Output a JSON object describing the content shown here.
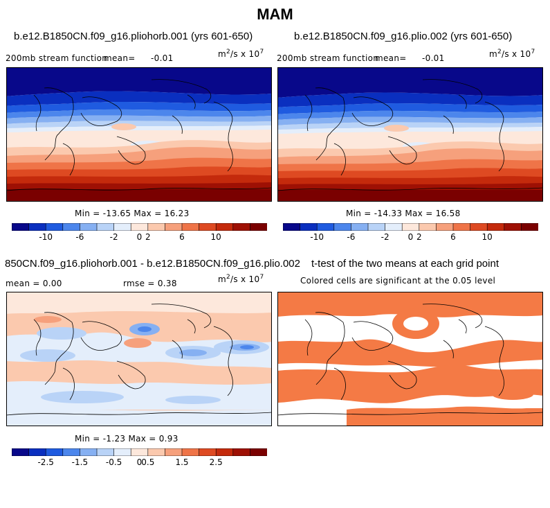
{
  "title": "MAM",
  "panels": [
    {
      "id": "p1",
      "case_title": "b.e12.B1850CN.f09_g16.pliohorb.001 (yrs 601-650)",
      "left_label": "200mb stream function",
      "mean_label": "mean=",
      "mean_value": "-0.01",
      "units": "m",
      "units_sup": "2",
      "units_rest": "/s x 10",
      "units_exp": "7",
      "min_max": "Min = -13.65 Max = 16.23"
    },
    {
      "id": "p2",
      "case_title": "b.e12.B1850CN.f09_g16.plio.002 (yrs 601-650)",
      "left_label": "200mb stream function",
      "mean_label": "mean=",
      "mean_value": "-0.01",
      "units": "m",
      "units_sup": "2",
      "units_rest": "/s x 10",
      "units_exp": "7",
      "min_max": "Min = -14.33 Max = 16.58"
    },
    {
      "id": "p3",
      "case_title": "850CN.f09_g16.pliohorb.001 - b.e12.B1850CN.f09_g16.plio.002",
      "mean_text": "mean =  0.00",
      "rmse_text": "rmse =  0.38",
      "units": "m",
      "units_sup": "2",
      "units_rest": "/s x 10",
      "units_exp": "7",
      "min_max": "Min = -1.23 Max = 0.93"
    },
    {
      "id": "p4",
      "case_title": "t-test of the two means at each grid point",
      "subtitle": "Colored cells are significant at the 0.05 level"
    }
  ],
  "colorbar_full": {
    "colors": [
      "#08088a",
      "#0a2fbf",
      "#1f5be0",
      "#4c86ec",
      "#86b0f2",
      "#b9d3f7",
      "#e4eefb",
      "#fde8dc",
      "#fbc9ae",
      "#f6a07c",
      "#ef7448",
      "#de4a22",
      "#c42a0c",
      "#9e1004",
      "#7a0000"
    ],
    "tick_labels": [
      "-10",
      "-6",
      "-2",
      "0",
      "2",
      "6",
      "10"
    ]
  },
  "colorbar_diff": {
    "colors": [
      "#08088a",
      "#0a2fbf",
      "#1f5be0",
      "#4c86ec",
      "#86b0f2",
      "#b9d3f7",
      "#e4eefb",
      "#fde8dc",
      "#fbc9ae",
      "#f6a07c",
      "#ef7448",
      "#de4a22",
      "#c42a0c",
      "#9e1004",
      "#7a0000"
    ],
    "tick_labels": [
      "-2.5",
      "-1.5",
      "-0.5",
      "0",
      "0.5",
      "1.5",
      "2.5"
    ]
  },
  "significance_color": "#f47a45"
}
